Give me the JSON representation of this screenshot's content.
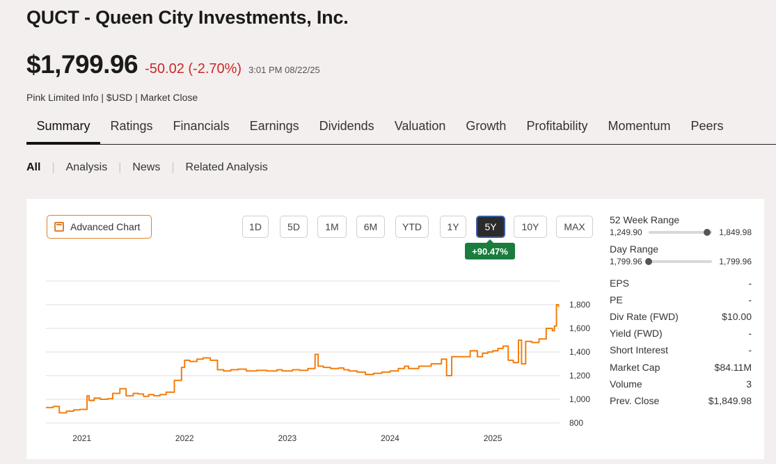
{
  "header": {
    "title": "QUCT - Queen City Investments, Inc.",
    "price": "$1,799.96",
    "change": "-50.02 (-2.70%)",
    "timestamp": "3:01 PM 08/22/25",
    "meta": "Pink Limited Info | $USD | Market Close"
  },
  "tabs": [
    "Summary",
    "Ratings",
    "Financials",
    "Earnings",
    "Dividends",
    "Valuation",
    "Growth",
    "Profitability",
    "Momentum",
    "Peers"
  ],
  "active_tab": "Summary",
  "subnav": [
    "All",
    "Analysis",
    "News",
    "Related Analysis"
  ],
  "active_subnav": "All",
  "chart_controls": {
    "advanced_chart_label": "Advanced Chart",
    "ranges": [
      "1D",
      "5D",
      "1M",
      "6M",
      "YTD",
      "1Y",
      "5Y",
      "10Y",
      "MAX"
    ],
    "active_range": "5Y",
    "performance": "+90.47%"
  },
  "stats": {
    "week52": {
      "label": "52 Week Range",
      "low": "1,249.90",
      "high": "1,849.98",
      "position": 0.92
    },
    "day": {
      "label": "Day Range",
      "low": "1,799.96",
      "high": "1,799.96",
      "position": 0.0
    },
    "rows": [
      {
        "label": "EPS",
        "value": "-"
      },
      {
        "label": "PE",
        "value": "-"
      },
      {
        "label": "Div Rate (FWD)",
        "value": "$10.00"
      },
      {
        "label": "Yield (FWD)",
        "value": "-"
      },
      {
        "label": "Short Interest",
        "value": "-"
      },
      {
        "label": "Market Cap",
        "value": "$84.11M"
      },
      {
        "label": "Volume",
        "value": "3"
      },
      {
        "label": "Prev. Close",
        "value": "$1,849.98"
      }
    ]
  },
  "colors": {
    "line": "#f47d0b",
    "negative": "#c62a2a",
    "positive": "#1a7d3e",
    "accent": "#e07e27"
  },
  "chart_data": {
    "type": "line",
    "x_tick_labels": [
      "2021",
      "2022",
      "2023",
      "2024",
      "2025"
    ],
    "y_tick_labels": [
      "800",
      "1,000",
      "1,200",
      "1,400",
      "1,600",
      "1,800"
    ],
    "ylim": [
      800,
      2000
    ],
    "xlim": [
      2020.65,
      2025.65
    ],
    "grid": true,
    "series": [
      {
        "x": [
          2020.65,
          2020.72,
          2020.78,
          2020.85,
          2020.92,
          2020.98,
          2021.05,
          2021.07,
          2021.12,
          2021.18,
          2021.25,
          2021.3,
          2021.37,
          2021.43,
          2021.5,
          2021.55,
          2021.6,
          2021.65,
          2021.7,
          2021.76,
          2021.82,
          2021.9,
          2021.97,
          2022.0,
          2022.05,
          2022.12,
          2022.18,
          2022.25,
          2022.32,
          2022.38,
          2022.45,
          2022.52,
          2022.6,
          2022.7,
          2022.8,
          2022.9,
          2022.95,
          2023.0,
          2023.05,
          2023.12,
          2023.2,
          2023.27,
          2023.3,
          2023.35,
          2023.42,
          2023.5,
          2023.55,
          2023.6,
          2023.68,
          2023.76,
          2023.84,
          2023.92,
          2024.0,
          2024.08,
          2024.14,
          2024.18,
          2024.28,
          2024.38,
          2024.4,
          2024.5,
          2024.55,
          2024.6,
          2024.7,
          2024.78,
          2024.85,
          2024.9,
          2024.95,
          2025.0,
          2025.05,
          2025.1,
          2025.15,
          2025.2,
          2025.25,
          2025.28,
          2025.32,
          2025.38,
          2025.45,
          2025.52,
          2025.58,
          2025.6,
          2025.62,
          2025.64
        ],
        "y": [
          930,
          940,
          885,
          900,
          910,
          915,
          1030,
          990,
          1010,
          1000,
          1005,
          1050,
          1090,
          1030,
          1050,
          1045,
          1025,
          1040,
          1030,
          1040,
          1060,
          1160,
          1270,
          1330,
          1320,
          1340,
          1350,
          1330,
          1250,
          1240,
          1250,
          1255,
          1240,
          1245,
          1240,
          1250,
          1240,
          1240,
          1250,
          1245,
          1260,
          1380,
          1280,
          1270,
          1260,
          1265,
          1250,
          1240,
          1230,
          1210,
          1220,
          1230,
          1240,
          1260,
          1280,
          1260,
          1280,
          1280,
          1300,
          1340,
          1200,
          1360,
          1360,
          1410,
          1360,
          1390,
          1400,
          1410,
          1430,
          1450,
          1330,
          1310,
          1500,
          1300,
          1490,
          1480,
          1510,
          1600,
          1580,
          1620,
          1800,
          1780
        ]
      }
    ]
  }
}
